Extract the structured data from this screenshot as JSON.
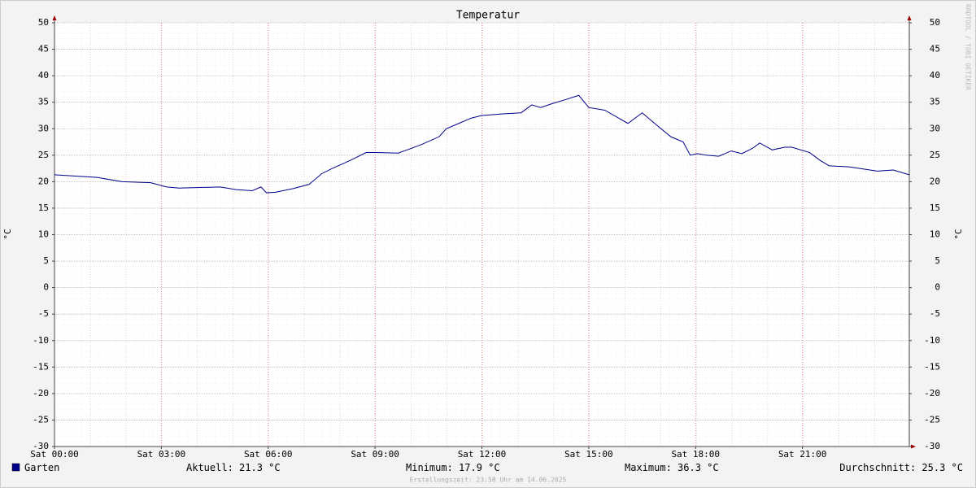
{
  "chart_data": {
    "type": "line",
    "title": "Temperatur",
    "y_label": "°C",
    "watermark": "RRDTOOL / TOBI OETIKER",
    "x": [
      0,
      1.2,
      1.9,
      2.7,
      3.15,
      3.5,
      4.65,
      5.1,
      5.55,
      5.8,
      5.95,
      6.2,
      6.7,
      7.15,
      7.5,
      7.8,
      8.3,
      8.75,
      9.0,
      9.65,
      9.9,
      10.3,
      10.8,
      11.0,
      11.35,
      11.7,
      12.0,
      12.6,
      13.1,
      13.4,
      13.65,
      14.0,
      14.35,
      14.72,
      15.0,
      15.45,
      16.1,
      16.5,
      16.85,
      17.3,
      17.65,
      17.85,
      18.05,
      18.3,
      18.65,
      19.0,
      19.3,
      19.6,
      19.8,
      20.15,
      20.5,
      20.7,
      21.2,
      21.5,
      21.75,
      22.3,
      22.8,
      23.1,
      23.55,
      24.0
    ],
    "series": [
      {
        "name": "Garten",
        "color": "#00008b",
        "values": [
          21.3,
          20.8,
          20.0,
          19.8,
          19.0,
          18.8,
          19.0,
          18.5,
          18.3,
          19.0,
          17.9,
          18.0,
          18.7,
          19.5,
          21.5,
          22.5,
          24.0,
          25.5,
          25.5,
          25.4,
          26.0,
          27.0,
          28.5,
          30.0,
          31.0,
          32.0,
          32.5,
          32.8,
          33.0,
          34.5,
          34.0,
          34.8,
          35.5,
          36.3,
          34.0,
          33.5,
          31.0,
          33.0,
          31.0,
          28.5,
          27.5,
          25.0,
          25.3,
          25.0,
          24.8,
          25.8,
          25.3,
          26.3,
          27.3,
          26.0,
          26.5,
          26.5,
          25.5,
          24.0,
          23.0,
          22.8,
          22.3,
          22.0,
          22.2,
          21.3
        ]
      }
    ],
    "xlim": [
      0,
      24
    ],
    "xticks": [
      {
        "value": 0,
        "label": "Sat 00:00"
      },
      {
        "value": 3,
        "label": "Sat 03:00"
      },
      {
        "value": 6,
        "label": "Sat 06:00"
      },
      {
        "value": 9,
        "label": "Sat 09:00"
      },
      {
        "value": 12,
        "label": "Sat 12:00"
      },
      {
        "value": 15,
        "label": "Sat 15:00"
      },
      {
        "value": 18,
        "label": "Sat 18:00"
      },
      {
        "value": 21,
        "label": "Sat 21:00"
      }
    ],
    "ylim": [
      -30,
      50
    ],
    "yticks": [
      -30,
      -25,
      -20,
      -15,
      -10,
      -5,
      0,
      5,
      10,
      15,
      20,
      25,
      30,
      35,
      40,
      45,
      50
    ],
    "grid": true,
    "stats": [
      "Aktuell: 21.3 °C",
      "Minimum: 17.9 °C",
      "Maximum: 36.3 °C",
      "Durchschnitt: 25.3 °C"
    ],
    "footnote": "Erstellungszeit: 23:58 Uhr am 14.06.2025"
  }
}
